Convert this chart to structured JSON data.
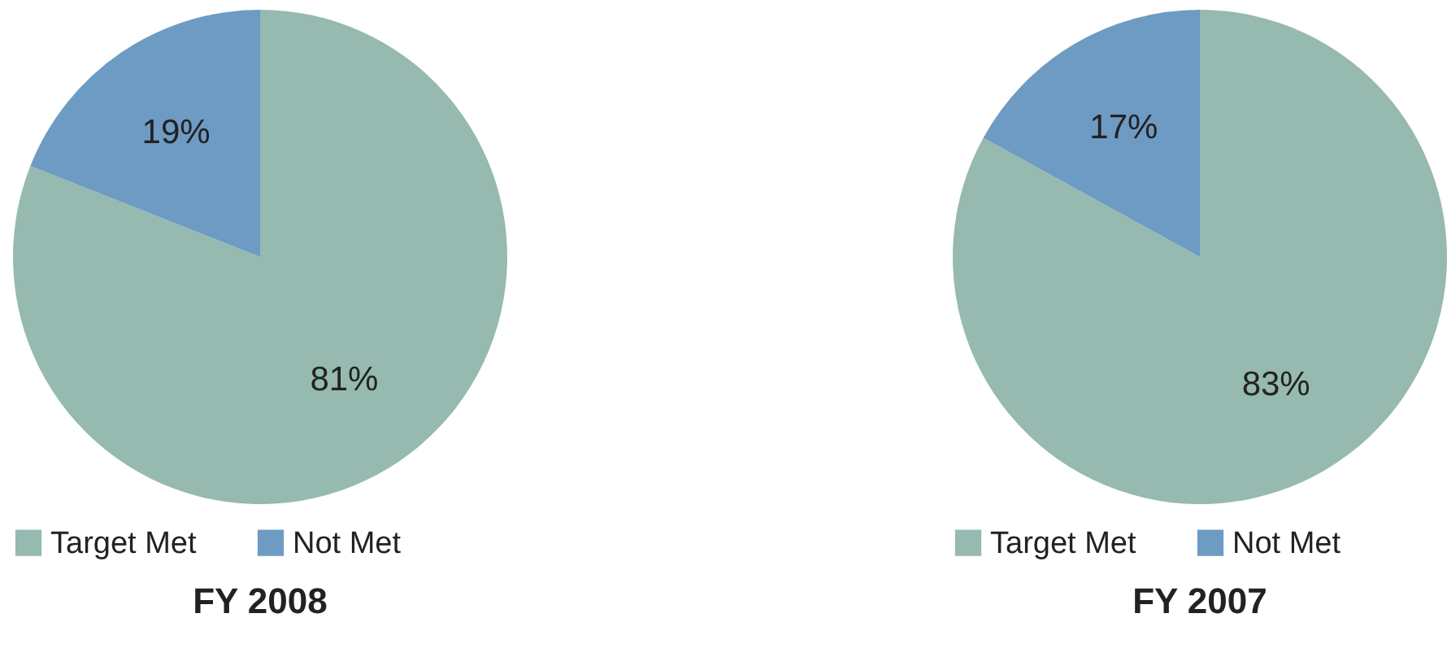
{
  "chart_data": [
    {
      "type": "pie",
      "title": "FY 2008",
      "categories": [
        "Target Met",
        "Not Met"
      ],
      "values": [
        81,
        19
      ],
      "colors": [
        "#96b9b0",
        "#6d9bc3"
      ],
      "value_labels": [
        "81%",
        "19%"
      ],
      "legend": "bottom"
    },
    {
      "type": "pie",
      "title": "FY 2007",
      "categories": [
        "Target Met",
        "Not Met"
      ],
      "values": [
        83,
        17
      ],
      "colors": [
        "#96b9b0",
        "#6d9bc3"
      ],
      "value_labels": [
        "83%",
        "17%"
      ],
      "legend": "bottom"
    }
  ]
}
